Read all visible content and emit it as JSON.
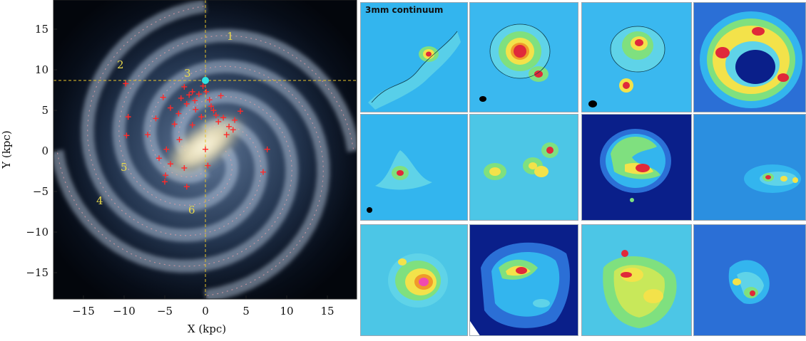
{
  "galaxy_map": {
    "x_axis_label": "X (kpc)",
    "y_axis_label": "Y (kpc)",
    "x_ticks": [
      "−15",
      "−10",
      "−5",
      "0",
      "5",
      "10",
      "15"
    ],
    "y_ticks": [
      "15",
      "10",
      "5",
      "0",
      "−5",
      "−10",
      "−15"
    ],
    "arm_labels": [
      "1",
      "2",
      "3",
      "4",
      "5",
      "6"
    ],
    "colors": {
      "source_marker": "#ff2a2a",
      "sun_marker": "#2fe3e3",
      "guide_lines": "#e6c229",
      "arm_labels": "#e8d84a"
    }
  },
  "continuum_maps": {
    "title": "3mm continuum",
    "grid": "3 rows x 4 columns"
  }
}
